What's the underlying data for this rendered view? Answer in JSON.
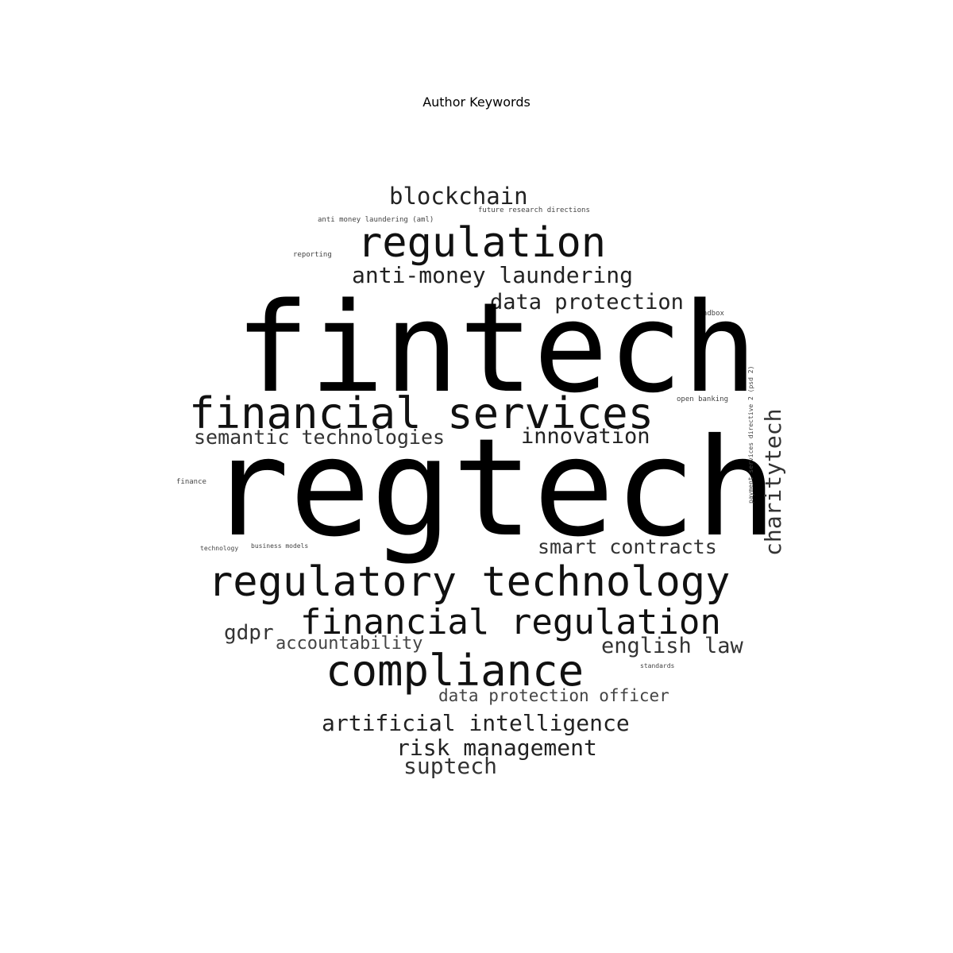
{
  "title": "Author Keywords",
  "keywords": {
    "fintech": "fintech",
    "regtech": "regtech",
    "regulation": "regulation",
    "blockchain": "blockchain",
    "aml_abbrev": "anti money laundering (aml)",
    "future_research": "future research directions",
    "reporting": "reporting",
    "aml": "anti-money laundering",
    "data_protection": "data protection",
    "sandbox": "sandbox",
    "financial_services": "financial services",
    "open_banking": "open banking",
    "semantic_technologies": "semantic technologies",
    "innovation": "innovation",
    "finance": "finance",
    "technology": "technology",
    "business_models": "business models",
    "smart_contracts": "smart contracts",
    "regulatory_technology": "regulatory technology",
    "financial_regulation": "financial regulation",
    "gdpr": "gdpr",
    "accountability": "accountability",
    "english_law": "english law",
    "compliance": "compliance",
    "standards": "standards",
    "data_protection_officer": "data protection officer",
    "artificial_intelligence": "artificial intelligence",
    "risk_management": "risk management",
    "suptech": "suptech",
    "charitytech": "charitytech",
    "psd2": "payment services directive 2 (psd 2)"
  }
}
